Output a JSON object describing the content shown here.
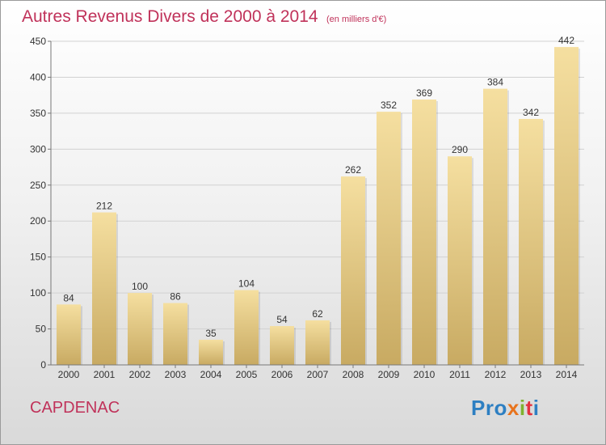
{
  "chart_data": {
    "type": "bar",
    "title": "Autres Revenus Divers de 2000 à 2014",
    "subtitle": "(en milliers d'€)",
    "categories": [
      "2000",
      "2001",
      "2002",
      "2003",
      "2004",
      "2005",
      "2006",
      "2007",
      "2008",
      "2009",
      "2010",
      "2011",
      "2012",
      "2013",
      "2014"
    ],
    "values": [
      84,
      212,
      100,
      86,
      35,
      104,
      54,
      62,
      262,
      352,
      369,
      290,
      384,
      342,
      442
    ],
    "ylim": [
      0,
      450
    ],
    "yticks": [
      0,
      50,
      100,
      150,
      200,
      250,
      300,
      350,
      400,
      450
    ],
    "grid": true,
    "bar_color_top": "#f5dfa0",
    "bar_color_bottom": "#c8aa62"
  },
  "footer": {
    "city": "CAPDENAC",
    "logo": [
      "Pro",
      "x",
      "i",
      "t",
      "i"
    ]
  }
}
